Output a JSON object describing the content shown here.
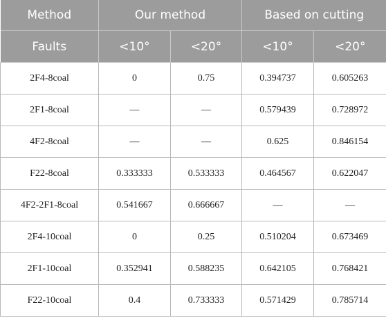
{
  "header": {
    "method_label": "Method",
    "our_method_label": "Our method",
    "based_on_cutting_label": "Based on cutting",
    "faults_label": "Faults",
    "sub_headers": [
      "<10°",
      "<20°",
      "<10°",
      "<20°"
    ]
  },
  "rows": [
    {
      "fault": "2F4-8coal",
      "values": [
        "0",
        "0.75",
        "0.394737",
        "0.605263"
      ]
    },
    {
      "fault": "2F1-8coal",
      "values": [
        "—",
        "—",
        "0.579439",
        "0.728972"
      ]
    },
    {
      "fault": "4F2-8coal",
      "values": [
        "—",
        "—",
        "0.625",
        "0.846154"
      ]
    },
    {
      "fault": "F22-8coal",
      "values": [
        "0.333333",
        "0.533333",
        "0.464567",
        "0.622047"
      ]
    },
    {
      "fault": "4F2-2F1-8coal",
      "values": [
        "0.541667",
        "0.666667",
        "—",
        "—"
      ]
    },
    {
      "fault": "2F4-10coal",
      "values": [
        "0",
        "0.25",
        "0.510204",
        "0.673469"
      ]
    },
    {
      "fault": "2F1-10coal",
      "values": [
        "0.352941",
        "0.588235",
        "0.642105",
        "0.768421"
      ]
    },
    {
      "fault": "F22-10coal",
      "values": [
        "0.4",
        "0.733333",
        "0.571429",
        "0.785714"
      ]
    }
  ]
}
